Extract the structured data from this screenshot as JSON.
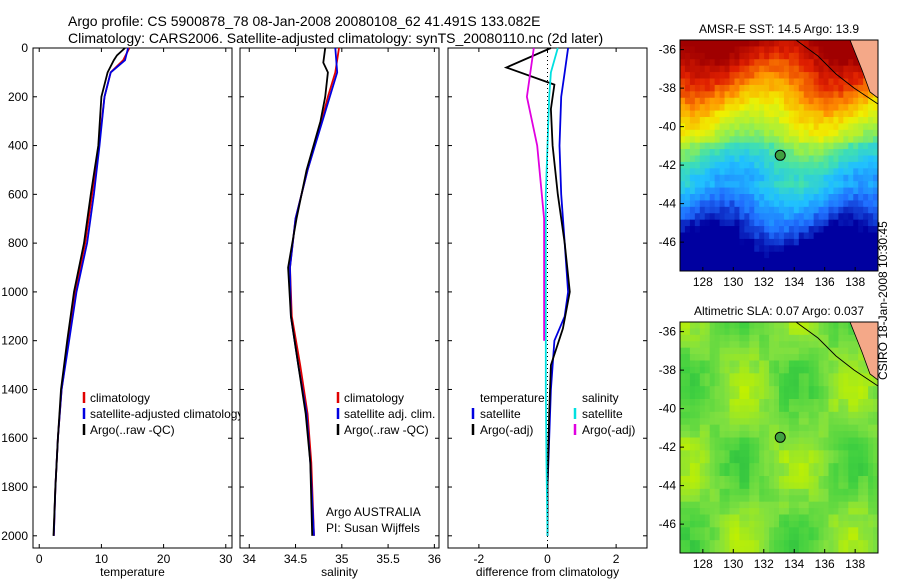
{
  "header": {
    "line1": "Argo profile: CS 5900878_78 08-Jan-2008 20080108_62 41.491S 133.082E",
    "line2": "Climatology: CARS2006. Satellite-adjusted climatology: synTS_20080110.nc (2d later)"
  },
  "credit": "CSIRO 18-Jan-2008 10:30:45",
  "colors": {
    "climatology": "#e00000",
    "satellite": "#0000e0",
    "argo": "#000000",
    "satellite_diff": "#00e0e0",
    "argo_sal_diff": "#e000e0"
  },
  "chart_data": [
    {
      "type": "line",
      "xlabel": "temperature",
      "xlim": [
        -1,
        31
      ],
      "xticks": [
        "0",
        "10",
        "20",
        "30"
      ],
      "ylim": [
        2050,
        0
      ],
      "yticks": [
        "0",
        "200",
        "400",
        "600",
        "800",
        "1000",
        "1200",
        "1400",
        "1600",
        "1800",
        "2000"
      ],
      "legend": [
        "climatology",
        "satellite-adjusted climatology",
        "Argo(..raw -QC)"
      ],
      "series": [
        {
          "name": "climatology",
          "color": "climatology",
          "x": [
            14.5,
            13.5,
            11.5,
            10.5,
            9.6,
            8.5,
            7.4,
            5.8,
            4.7,
            3.6,
            3.0,
            2.6,
            2.35
          ],
          "y": [
            0,
            50,
            100,
            200,
            400,
            600,
            800,
            1000,
            1200,
            1400,
            1600,
            1800,
            2000
          ]
        },
        {
          "name": "satellite-adjusted climatology",
          "color": "satellite",
          "x": [
            14.3,
            13.8,
            11.5,
            10.5,
            9.7,
            8.8,
            7.7,
            6.0,
            4.8,
            3.6,
            3.0,
            2.6,
            2.35
          ],
          "y": [
            0,
            50,
            100,
            200,
            400,
            600,
            800,
            1000,
            1200,
            1400,
            1600,
            1800,
            2000
          ]
        },
        {
          "name": "Argo(..raw -QC)",
          "color": "argo",
          "x": [
            13.8,
            12.5,
            12.0,
            11.0,
            10.0,
            9.5,
            8.3,
            7.2,
            5.6,
            4.5,
            3.5,
            3.0,
            2.6,
            2.3
          ],
          "y": [
            0,
            30,
            50,
            100,
            200,
            400,
            600,
            800,
            1000,
            1200,
            1400,
            1600,
            1800,
            2000
          ]
        }
      ]
    },
    {
      "type": "line",
      "xlabel": "salinity",
      "xlim": [
        33.9,
        36.05
      ],
      "xticks": [
        "34",
        "34.5",
        "35",
        "35.5",
        "36"
      ],
      "ylim": [
        2050,
        0
      ],
      "legend": [
        "climatology",
        "satellite adj. clim.",
        "Argo(..raw -QC)"
      ],
      "annotations": [
        "Argo AUSTRALIA",
        "PI: Susan Wijffels"
      ],
      "series": [
        {
          "name": "climatology",
          "color": "climatology",
          "x": [
            34.97,
            34.93,
            34.85,
            34.78,
            34.63,
            34.5,
            34.44,
            34.46,
            34.55,
            34.63,
            34.67,
            34.7
          ],
          "y": [
            0,
            100,
            200,
            300,
            500,
            700,
            900,
            1100,
            1300,
            1500,
            1700,
            2000
          ]
        },
        {
          "name": "satellite adj. clim.",
          "color": "satellite",
          "x": [
            34.93,
            34.95,
            34.87,
            34.79,
            34.63,
            34.5,
            34.44,
            34.45,
            34.53,
            34.62,
            34.66,
            34.7
          ],
          "y": [
            0,
            100,
            200,
            300,
            500,
            700,
            900,
            1100,
            1300,
            1500,
            1700,
            2000
          ]
        },
        {
          "name": "Argo(..raw -QC)",
          "color": "argo",
          "x": [
            34.82,
            34.8,
            34.85,
            34.82,
            34.77,
            34.62,
            34.51,
            34.42,
            34.45,
            34.53,
            34.61,
            34.66,
            34.68
          ],
          "y": [
            0,
            60,
            100,
            200,
            300,
            500,
            700,
            900,
            1100,
            1300,
            1500,
            1700,
            2000
          ]
        }
      ]
    },
    {
      "type": "line",
      "xlabel": "difference from climatology",
      "xlim": [
        -2.9,
        2.9
      ],
      "xticks": [
        "-2",
        "0",
        "2"
      ],
      "ylim": [
        2050,
        0
      ],
      "legend": {
        "temperature_heading": "temperature",
        "salinity_heading": "salinity",
        "temperature": [
          "satellite",
          "Argo(-adj)"
        ],
        "salinity": [
          "satellite",
          "Argo(-adj)"
        ]
      },
      "series": [
        {
          "name": "temperature satellite",
          "color": "satellite",
          "x": [
            0.6,
            0.5,
            0.4,
            0.35,
            0.4,
            0.5,
            0.6,
            0.5,
            0.2,
            0.1,
            0.05,
            0.0,
            0.0
          ],
          "y": [
            0,
            100,
            200,
            400,
            600,
            800,
            1000,
            1100,
            1200,
            1400,
            1600,
            1800,
            2000
          ]
        },
        {
          "name": "temperature Argo(-adj)",
          "color": "argo",
          "x": [
            0.1,
            -1.2,
            0.2,
            0.1,
            0.15,
            0.3,
            0.5,
            0.65,
            0.45,
            0.1,
            0.05,
            0.0,
            0.0
          ],
          "y": [
            0,
            80,
            150,
            250,
            400,
            600,
            800,
            1000,
            1150,
            1300,
            1500,
            1800,
            2000
          ]
        },
        {
          "name": "salinity satellite",
          "color": "satellite_diff",
          "x": [
            0.3,
            0.1,
            0.05,
            0.0,
            -0.05,
            -0.05,
            -0.05,
            -0.05,
            -0.05,
            -0.03,
            0.0
          ],
          "y": [
            0,
            100,
            200,
            400,
            600,
            800,
            1000,
            1200,
            1400,
            1700,
            2000
          ]
        },
        {
          "name": "salinity Argo(-adj)",
          "color": "argo_sal_diff",
          "x": [
            -0.4,
            -0.6,
            -0.3,
            -0.1,
            -0.1,
            -0.1
          ],
          "y": [
            0,
            200,
            400,
            700,
            1000,
            1200
          ]
        }
      ]
    },
    {
      "type": "heatmap",
      "title": "AMSR-E SST: 14.5 Argo: 13.9",
      "xlim": [
        126.5,
        139.5
      ],
      "ylim": [
        -47.5,
        -35.5
      ],
      "xticks": [
        "128",
        "130",
        "132",
        "134",
        "136",
        "138"
      ],
      "yticks": [
        "-36",
        "-38",
        "-40",
        "-42",
        "-44",
        "-46"
      ],
      "marker": {
        "x": 133.08,
        "y": -41.49
      },
      "colorscale": [
        "#0000a0",
        "#2070ff",
        "#20c0ff",
        "#40e0b0",
        "#a0f040",
        "#f0f000",
        "#ff9000",
        "#e02000",
        "#a00000"
      ]
    },
    {
      "type": "heatmap",
      "title": "Altimetric SLA: 0.07 Argo: 0.037",
      "xlim": [
        126.5,
        139.5
      ],
      "ylim": [
        -47.5,
        -35.5
      ],
      "xticks": [
        "128",
        "130",
        "132",
        "134",
        "136",
        "138"
      ],
      "yticks": [
        "-36",
        "-38",
        "-40",
        "-42",
        "-44",
        "-46"
      ],
      "marker": {
        "x": 133.08,
        "y": -41.49
      },
      "colorscale": [
        "#20b040",
        "#40d040",
        "#80e040",
        "#c0f000",
        "#f0e020"
      ]
    }
  ]
}
